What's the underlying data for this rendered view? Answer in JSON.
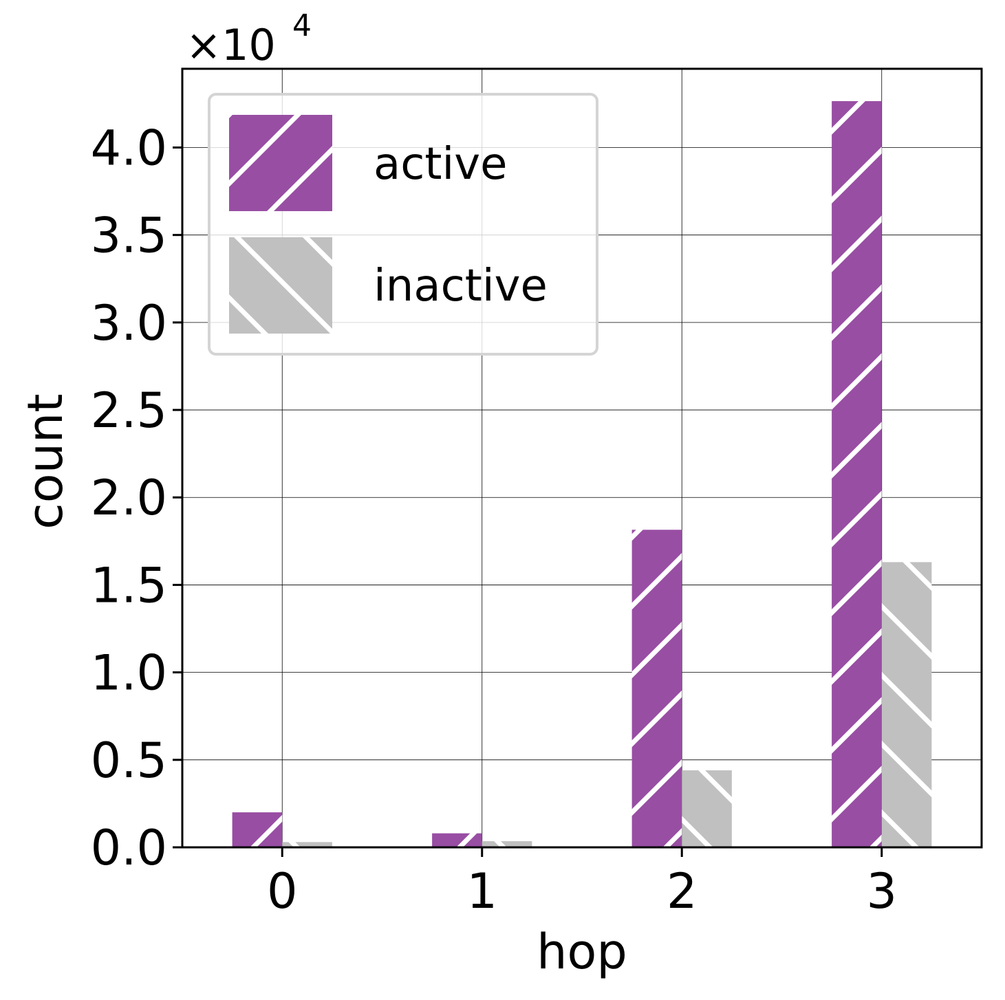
{
  "chart_data": {
    "type": "bar",
    "xlabel": "hop",
    "ylabel": "count",
    "multiplier": {
      "base": "×10",
      "exponent": "4"
    },
    "categories": [
      "0",
      "1",
      "2",
      "3"
    ],
    "ylim": [
      0,
      44500
    ],
    "yticks": [
      0,
      5000,
      10000,
      15000,
      20000,
      25000,
      30000,
      35000,
      40000
    ],
    "ytick_labels": [
      "0.0",
      "0.5",
      "1.0",
      "1.5",
      "2.0",
      "2.5",
      "3.0",
      "3.5",
      "4.0"
    ],
    "grid": true,
    "legend_position": "top-left",
    "series": [
      {
        "name": "active",
        "color": "#984ea3",
        "hatch": "forward-diagonal",
        "values": [
          2000,
          800,
          18150,
          42650
        ]
      },
      {
        "name": "inactive",
        "color": "#c0c0c0",
        "hatch": "back-diagonal",
        "values": [
          300,
          350,
          4400,
          16300
        ]
      }
    ]
  }
}
